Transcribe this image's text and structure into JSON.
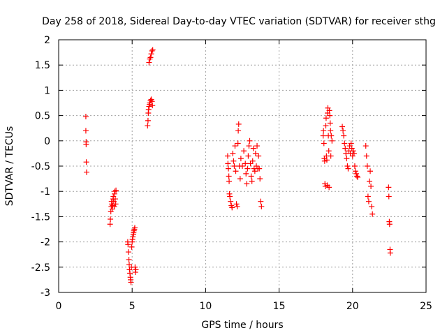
{
  "chart_data": {
    "type": "scatter",
    "title": "Day 258 of 2018, Sidereal Day-to-day VTEC variation (SDTVAR) for receiver sthg",
    "xlabel": "GPS time / hours",
    "ylabel": "SDTVAR / TECUs",
    "xlim": [
      0,
      25
    ],
    "ylim": [
      -3,
      2
    ],
    "xticks": [
      0,
      5,
      10,
      15,
      20,
      25
    ],
    "yticks": [
      -3,
      -2.5,
      -2,
      -1.5,
      -1,
      -0.5,
      0,
      0.5,
      1,
      1.5,
      2
    ],
    "grid": true,
    "marker": "+",
    "series": [
      {
        "name": "SDTVAR",
        "color": "#ff0000",
        "points": [
          [
            1.85,
            0.48
          ],
          [
            1.85,
            0.2
          ],
          [
            1.87,
            -0.02
          ],
          [
            1.87,
            -0.07
          ],
          [
            1.88,
            -0.42
          ],
          [
            1.9,
            -0.62
          ],
          [
            3.5,
            -1.65
          ],
          [
            3.52,
            -1.55
          ],
          [
            3.55,
            -1.4
          ],
          [
            3.58,
            -1.3
          ],
          [
            3.6,
            -1.2
          ],
          [
            3.62,
            -1.25
          ],
          [
            3.65,
            -1.35
          ],
          [
            3.68,
            -1.28
          ],
          [
            3.7,
            -1.15
          ],
          [
            3.72,
            -1.1
          ],
          [
            3.75,
            -1.2
          ],
          [
            3.78,
            -1.3
          ],
          [
            3.8,
            -1.05
          ],
          [
            3.82,
            -1.0
          ],
          [
            3.85,
            -1.15
          ],
          [
            3.88,
            -1.25
          ],
          [
            3.9,
            -0.98
          ],
          [
            4.7,
            -2.0
          ],
          [
            4.72,
            -2.05
          ],
          [
            4.75,
            -2.2
          ],
          [
            4.78,
            -2.35
          ],
          [
            4.8,
            -2.45
          ],
          [
            4.82,
            -2.55
          ],
          [
            4.85,
            -2.62
          ],
          [
            4.88,
            -2.7
          ],
          [
            4.9,
            -2.75
          ],
          [
            4.92,
            -2.8
          ],
          [
            4.95,
            -2.5
          ],
          [
            4.97,
            -2.1
          ],
          [
            5.0,
            -2.0
          ],
          [
            5.02,
            -1.95
          ],
          [
            5.05,
            -1.9
          ],
          [
            5.08,
            -1.85
          ],
          [
            5.1,
            -1.82
          ],
          [
            5.12,
            -1.78
          ],
          [
            5.15,
            -1.75
          ],
          [
            5.18,
            -1.72
          ],
          [
            5.2,
            -2.5
          ],
          [
            5.22,
            -2.6
          ],
          [
            5.25,
            -2.55
          ],
          [
            6.05,
            0.3
          ],
          [
            6.08,
            0.4
          ],
          [
            6.1,
            0.55
          ],
          [
            6.12,
            0.62
          ],
          [
            6.15,
            0.68
          ],
          [
            6.18,
            0.72
          ],
          [
            6.2,
            0.75
          ],
          [
            6.25,
            0.8
          ],
          [
            6.3,
            0.82
          ],
          [
            6.35,
            0.78
          ],
          [
            6.38,
            0.7
          ],
          [
            6.15,
            1.55
          ],
          [
            6.2,
            1.62
          ],
          [
            6.25,
            1.65
          ],
          [
            6.3,
            1.72
          ],
          [
            6.35,
            1.78
          ],
          [
            6.4,
            1.8
          ],
          [
            11.5,
            -0.3
          ],
          [
            11.52,
            -0.45
          ],
          [
            11.55,
            -0.55
          ],
          [
            11.58,
            -0.7
          ],
          [
            11.6,
            -0.8
          ],
          [
            11.62,
            -1.05
          ],
          [
            11.65,
            -1.1
          ],
          [
            11.7,
            -1.2
          ],
          [
            11.75,
            -1.28
          ],
          [
            11.8,
            -1.32
          ],
          [
            11.85,
            -0.25
          ],
          [
            11.9,
            -0.4
          ],
          [
            11.95,
            -0.5
          ],
          [
            12.0,
            -0.1
          ],
          [
            12.05,
            -0.6
          ],
          [
            12.1,
            -1.25
          ],
          [
            12.15,
            -1.3
          ],
          [
            12.2,
            -0.05
          ],
          [
            12.22,
            0.2
          ],
          [
            12.25,
            0.33
          ],
          [
            12.3,
            -0.5
          ],
          [
            12.35,
            -0.75
          ],
          [
            12.4,
            -0.35
          ],
          [
            12.5,
            -0.5
          ],
          [
            12.6,
            -0.2
          ],
          [
            12.7,
            -0.45
          ],
          [
            12.75,
            -0.65
          ],
          [
            12.8,
            -0.85
          ],
          [
            12.85,
            -0.55
          ],
          [
            12.9,
            -0.3
          ],
          [
            12.95,
            -0.1
          ],
          [
            13.0,
            0.0
          ],
          [
            13.05,
            -0.45
          ],
          [
            13.1,
            -0.7
          ],
          [
            13.15,
            -0.8
          ],
          [
            13.2,
            -0.4
          ],
          [
            13.25,
            -0.15
          ],
          [
            13.3,
            -0.55
          ],
          [
            13.35,
            -0.6
          ],
          [
            13.4,
            -0.25
          ],
          [
            13.45,
            -0.5
          ],
          [
            13.5,
            -0.1
          ],
          [
            13.55,
            -0.55
          ],
          [
            13.6,
            -0.3
          ],
          [
            13.65,
            -0.55
          ],
          [
            13.7,
            -0.75
          ],
          [
            13.75,
            -1.2
          ],
          [
            13.8,
            -1.3
          ],
          [
            18.0,
            0.1
          ],
          [
            18.02,
            0.2
          ],
          [
            18.05,
            -0.05
          ],
          [
            18.08,
            -0.35
          ],
          [
            18.1,
            -0.4
          ],
          [
            18.12,
            -0.85
          ],
          [
            18.15,
            -0.9
          ],
          [
            18.18,
            0.3
          ],
          [
            18.2,
            0.45
          ],
          [
            18.22,
            -0.3
          ],
          [
            18.25,
            -0.38
          ],
          [
            18.28,
            -0.88
          ],
          [
            18.3,
            0.55
          ],
          [
            18.32,
            0.65
          ],
          [
            18.35,
            0.1
          ],
          [
            18.38,
            -0.2
          ],
          [
            18.4,
            -0.92
          ],
          [
            18.42,
            0.6
          ],
          [
            18.45,
            0.5
          ],
          [
            18.48,
            0.35
          ],
          [
            18.5,
            0.2
          ],
          [
            18.52,
            -0.3
          ],
          [
            18.55,
            0.1
          ],
          [
            18.6,
            0.0
          ],
          [
            19.3,
            0.28
          ],
          [
            19.35,
            0.2
          ],
          [
            19.4,
            0.1
          ],
          [
            19.45,
            -0.05
          ],
          [
            19.5,
            -0.15
          ],
          [
            19.55,
            -0.25
          ],
          [
            19.6,
            -0.35
          ],
          [
            19.65,
            -0.5
          ],
          [
            19.7,
            -0.55
          ],
          [
            19.75,
            -0.2
          ],
          [
            19.8,
            -0.1
          ],
          [
            19.85,
            -0.25
          ],
          [
            19.9,
            -0.05
          ],
          [
            19.95,
            -0.15
          ],
          [
            20.0,
            -0.3
          ],
          [
            20.05,
            -0.2
          ],
          [
            20.1,
            -0.25
          ],
          [
            20.15,
            -0.5
          ],
          [
            20.2,
            -0.6
          ],
          [
            20.25,
            -0.65
          ],
          [
            20.3,
            -0.7
          ],
          [
            20.35,
            -0.72
          ],
          [
            20.9,
            -0.1
          ],
          [
            20.95,
            -0.3
          ],
          [
            21.0,
            -0.5
          ],
          [
            21.05,
            -1.1
          ],
          [
            21.1,
            -1.2
          ],
          [
            21.15,
            -0.8
          ],
          [
            21.2,
            -0.6
          ],
          [
            21.25,
            -0.9
          ],
          [
            21.3,
            -1.3
          ],
          [
            21.35,
            -1.45
          ],
          [
            22.45,
            -0.92
          ],
          [
            22.47,
            -1.1
          ],
          [
            22.5,
            -1.6
          ],
          [
            22.52,
            -1.65
          ],
          [
            22.55,
            -2.15
          ],
          [
            22.57,
            -2.22
          ]
        ]
      }
    ]
  }
}
